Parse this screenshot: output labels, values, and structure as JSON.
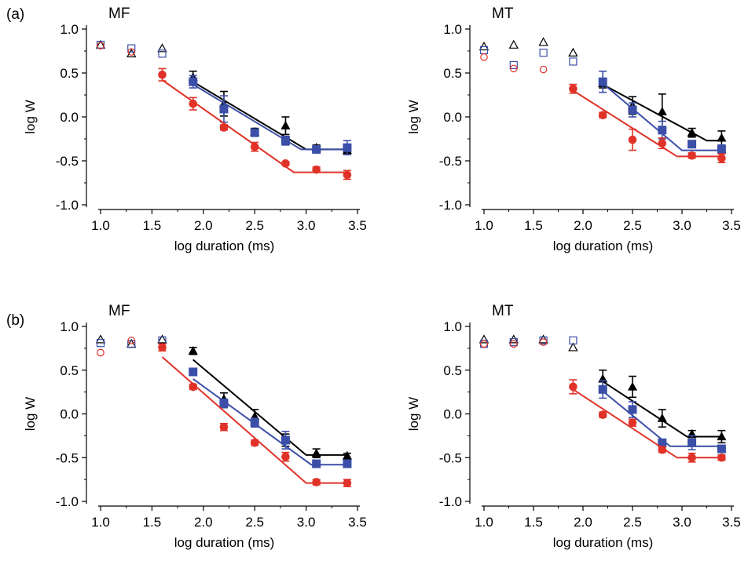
{
  "figure": {
    "row_labels": [
      "(a)",
      "(b)"
    ]
  },
  "chart_data": [
    {
      "type": "scatter",
      "title": "MF",
      "xlabel": "log duration (ms)",
      "ylabel": "log W",
      "xlim": [
        1.0,
        3.5
      ],
      "ylim": [
        -1.0,
        1.0
      ],
      "xticks": [
        "1.0",
        "1.5",
        "2.0",
        "2.5",
        "3.0",
        "3.5"
      ],
      "yticks": [
        "1.0",
        "0.5",
        "0.0",
        "-0.5",
        "-1.0"
      ],
      "grid": false,
      "series": [
        {
          "color": "#000000",
          "marker": "triangle",
          "open": [
            [
              1.0,
              0.82
            ],
            [
              1.3,
              0.72
            ],
            [
              1.6,
              0.78
            ]
          ],
          "filled": [
            [
              1.9,
              0.45
            ],
            [
              2.2,
              0.15
            ],
            [
              2.5,
              -0.17
            ],
            [
              2.8,
              -0.1
            ],
            [
              3.1,
              -0.35
            ],
            [
              3.4,
              -0.38
            ]
          ],
          "errors": [
            0.07,
            0.14,
            0.04,
            0.1,
            0.03,
            0.05
          ],
          "fit": [
            [
              1.9,
              0.4
            ],
            [
              3.0,
              -0.37
            ],
            [
              3.4,
              -0.37
            ]
          ]
        },
        {
          "color": "#3b4fa8",
          "marker": "square",
          "open": [
            [
              1.0,
              0.82
            ],
            [
              1.3,
              0.78
            ],
            [
              1.6,
              0.72
            ]
          ],
          "filled": [
            [
              1.9,
              0.4
            ],
            [
              2.2,
              0.09
            ],
            [
              2.5,
              -0.18
            ],
            [
              2.8,
              -0.27
            ],
            [
              3.1,
              -0.37
            ],
            [
              3.4,
              -0.35
            ]
          ],
          "errors": [
            0.07,
            0.15,
            0.04,
            0.05,
            0.03,
            0.08
          ],
          "fit": [
            [
              1.9,
              0.37
            ],
            [
              2.95,
              -0.37
            ],
            [
              3.4,
              -0.37
            ]
          ]
        },
        {
          "color": "#e03228",
          "marker": "circle",
          "open": [
            [
              1.0,
              0.81
            ],
            [
              1.3,
              0.74
            ]
          ],
          "filled": [
            [
              1.6,
              0.48
            ],
            [
              1.9,
              0.15
            ],
            [
              2.2,
              -0.12
            ],
            [
              2.5,
              -0.34
            ],
            [
              2.8,
              -0.53
            ],
            [
              3.1,
              -0.6
            ],
            [
              3.4,
              -0.66
            ]
          ],
          "errors": [
            0.07,
            0.07,
            0.03,
            0.05,
            0.02,
            0.03,
            0.05
          ],
          "fit": [
            [
              1.6,
              0.42
            ],
            [
              2.88,
              -0.63
            ],
            [
              3.4,
              -0.63
            ]
          ]
        }
      ]
    },
    {
      "type": "scatter",
      "title": "MT",
      "xlabel": "log duration (ms)",
      "ylabel": "log W",
      "xlim": [
        1.0,
        3.5
      ],
      "ylim": [
        -1.0,
        1.0
      ],
      "xticks": [
        "1.0",
        "1.5",
        "2.0",
        "2.5",
        "3.0",
        "3.5"
      ],
      "yticks": [
        "1.0",
        "0.5",
        "0.0",
        "-0.5",
        "-1.0"
      ],
      "grid": false,
      "series": [
        {
          "color": "#000000",
          "marker": "triangle",
          "open": [
            [
              1.0,
              0.8
            ],
            [
              1.3,
              0.82
            ],
            [
              1.6,
              0.85
            ],
            [
              1.9,
              0.73
            ]
          ],
          "filled": [
            [
              2.2,
              0.38
            ],
            [
              2.5,
              0.13
            ],
            [
              2.8,
              0.06
            ],
            [
              3.1,
              -0.18
            ],
            [
              3.4,
              -0.24
            ]
          ],
          "errors": [
            0.05,
            0.1,
            0.2,
            0.05,
            0.08
          ],
          "fit": [
            [
              2.2,
              0.37
            ],
            [
              3.25,
              -0.27
            ],
            [
              3.4,
              -0.27
            ]
          ]
        },
        {
          "color": "#3b4fa8",
          "marker": "square",
          "open": [
            [
              1.0,
              0.76
            ],
            [
              1.3,
              0.59
            ],
            [
              1.6,
              0.73
            ],
            [
              1.9,
              0.63
            ]
          ],
          "filled": [
            [
              2.2,
              0.4
            ],
            [
              2.5,
              0.08
            ],
            [
              2.8,
              -0.15
            ],
            [
              3.1,
              -0.31
            ],
            [
              3.4,
              -0.37
            ]
          ],
          "errors": [
            0.12,
            0.08,
            0.1,
            0.04,
            0.05
          ],
          "fit": [
            [
              2.2,
              0.38
            ],
            [
              3.0,
              -0.38
            ],
            [
              3.4,
              -0.38
            ]
          ]
        },
        {
          "color": "#e03228",
          "marker": "circle",
          "open": [
            [
              1.0,
              0.68
            ],
            [
              1.3,
              0.55
            ],
            [
              1.6,
              0.54
            ]
          ],
          "filled": [
            [
              1.9,
              0.32
            ],
            [
              2.2,
              0.02
            ],
            [
              2.5,
              -0.26
            ],
            [
              2.8,
              -0.3
            ],
            [
              3.1,
              -0.44
            ],
            [
              3.4,
              -0.47
            ]
          ],
          "errors": [
            0.05,
            0.03,
            0.12,
            0.06,
            0.03,
            0.05
          ],
          "fit": [
            [
              1.9,
              0.3
            ],
            [
              2.95,
              -0.45
            ],
            [
              3.4,
              -0.45
            ]
          ]
        }
      ]
    },
    {
      "type": "scatter",
      "title": "MF",
      "xlabel": "log duration (ms)",
      "ylabel": "log W",
      "xlim": [
        1.0,
        3.5
      ],
      "ylim": [
        -1.0,
        1.0
      ],
      "xticks": [
        "1.0",
        "1.5",
        "2.0",
        "2.5",
        "3.0",
        "3.5"
      ],
      "yticks": [
        "1.0",
        "0.5",
        "0.0",
        "-0.5",
        "-1.0"
      ],
      "grid": false,
      "series": [
        {
          "color": "#000000",
          "marker": "triangle",
          "open": [
            [
              1.0,
              0.85
            ],
            [
              1.3,
              0.8
            ],
            [
              1.6,
              0.85
            ]
          ],
          "filled": [
            [
              1.9,
              0.72
            ],
            [
              2.2,
              0.17
            ],
            [
              2.5,
              -0.03
            ],
            [
              2.8,
              -0.3
            ],
            [
              3.1,
              -0.45
            ],
            [
              3.4,
              -0.48
            ]
          ],
          "errors": [
            0.04,
            0.07,
            0.08,
            0.07,
            0.05,
            0.03
          ],
          "fit": [
            [
              1.9,
              0.62
            ],
            [
              3.0,
              -0.47
            ],
            [
              3.4,
              -0.47
            ]
          ]
        },
        {
          "color": "#3b4fa8",
          "marker": "square",
          "open": [
            [
              1.0,
              0.81
            ],
            [
              1.3,
              0.8
            ],
            [
              1.6,
              0.84
            ]
          ],
          "filled": [
            [
              1.9,
              0.48
            ],
            [
              2.2,
              0.12
            ],
            [
              2.5,
              -0.1
            ],
            [
              2.8,
              -0.3
            ],
            [
              3.1,
              -0.57
            ],
            [
              3.4,
              -0.57
            ]
          ],
          "errors": [
            0.03,
            0.05,
            0.05,
            0.1,
            0.03,
            0.03
          ],
          "fit": [
            [
              1.9,
              0.4
            ],
            [
              3.05,
              -0.58
            ],
            [
              3.4,
              -0.58
            ]
          ]
        },
        {
          "color": "#e03228",
          "marker": "circle",
          "open": [
            [
              1.0,
              0.7
            ],
            [
              1.3,
              0.84
            ]
          ],
          "filled": [
            [
              1.6,
              0.76
            ],
            [
              1.9,
              0.31
            ],
            [
              2.2,
              -0.15
            ],
            [
              2.5,
              -0.33
            ],
            [
              2.8,
              -0.49
            ],
            [
              3.1,
              -0.78
            ],
            [
              3.4,
              -0.79
            ]
          ],
          "errors": [
            0.04,
            0.03,
            0.04,
            0.03,
            0.05,
            0.03,
            0.04
          ],
          "fit": [
            [
              1.6,
              0.65
            ],
            [
              3.0,
              -0.79
            ],
            [
              3.4,
              -0.79
            ]
          ]
        }
      ]
    },
    {
      "type": "scatter",
      "title": "MT",
      "xlabel": "log duration (ms)",
      "ylabel": "log W",
      "xlim": [
        1.0,
        3.5
      ],
      "ylim": [
        -1.0,
        1.0
      ],
      "xticks": [
        "1.0",
        "1.5",
        "2.0",
        "2.5",
        "3.0",
        "3.5"
      ],
      "yticks": [
        "1.0",
        "0.5",
        "0.0",
        "-0.5",
        "-1.0"
      ],
      "grid": false,
      "series": [
        {
          "color": "#000000",
          "marker": "triangle",
          "open": [
            [
              1.0,
              0.85
            ],
            [
              1.3,
              0.85
            ],
            [
              1.6,
              0.85
            ],
            [
              1.9,
              0.76
            ]
          ],
          "filled": [
            [
              2.2,
              0.4
            ],
            [
              2.5,
              0.31
            ],
            [
              2.8,
              -0.05
            ],
            [
              3.1,
              -0.23
            ],
            [
              3.4,
              -0.26
            ]
          ],
          "errors": [
            0.1,
            0.12,
            0.1,
            0.04,
            0.07
          ],
          "fit": [
            [
              2.2,
              0.37
            ],
            [
              3.05,
              -0.26
            ],
            [
              3.4,
              -0.26
            ]
          ]
        },
        {
          "color": "#3b4fa8",
          "marker": "square",
          "open": [
            [
              1.0,
              0.8
            ],
            [
              1.3,
              0.82
            ],
            [
              1.6,
              0.84
            ],
            [
              1.9,
              0.84
            ]
          ],
          "filled": [
            [
              2.2,
              0.28
            ],
            [
              2.5,
              0.05
            ],
            [
              2.8,
              -0.33
            ],
            [
              3.1,
              -0.33
            ],
            [
              3.4,
              -0.4
            ]
          ],
          "errors": [
            0.1,
            0.09,
            0.04,
            0.08,
            0.04
          ],
          "fit": [
            [
              2.2,
              0.26
            ],
            [
              2.88,
              -0.37
            ],
            [
              3.4,
              -0.37
            ]
          ]
        },
        {
          "color": "#e03228",
          "marker": "circle",
          "open": [
            [
              1.0,
              0.8
            ],
            [
              1.3,
              0.8
            ],
            [
              1.6,
              0.82
            ]
          ],
          "filled": [
            [
              1.9,
              0.31
            ],
            [
              2.2,
              -0.01
            ],
            [
              2.5,
              -0.1
            ],
            [
              2.8,
              -0.41
            ],
            [
              3.1,
              -0.5
            ],
            [
              3.4,
              -0.5
            ]
          ],
          "errors": [
            0.08,
            0.03,
            0.04,
            0.03,
            0.05,
            0.03
          ],
          "fit": [
            [
              1.9,
              0.28
            ],
            [
              2.95,
              -0.5
            ],
            [
              3.4,
              -0.5
            ]
          ]
        }
      ]
    }
  ]
}
